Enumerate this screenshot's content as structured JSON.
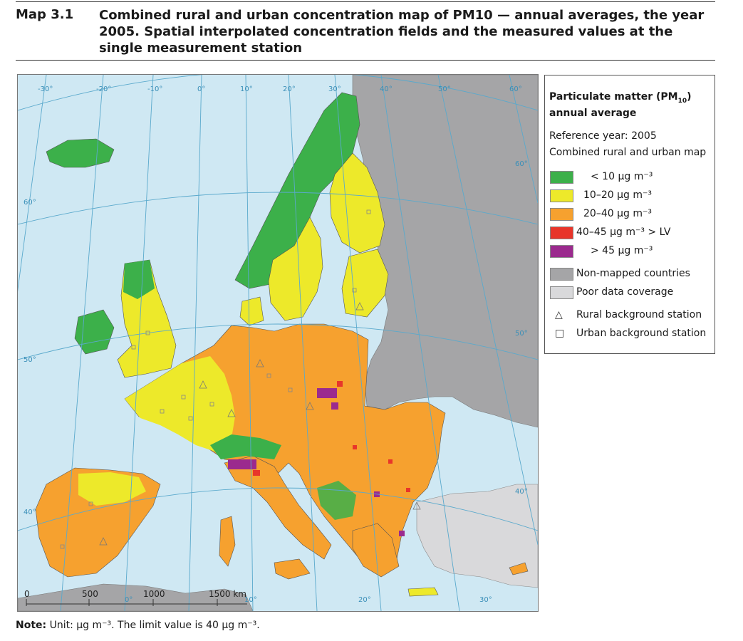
{
  "header": {
    "map_label": "Map 3.1",
    "title": "Combined rural and urban concentration map of PM10 — annual averages, the year 2005. Spatial interpolated concentration fields and the measured values at the single measurement station"
  },
  "graticule": {
    "longitude_labels": [
      "-30°",
      "-20°",
      "-10°",
      "0°",
      "10°",
      "20°",
      "30°",
      "40°",
      "50°",
      "60°"
    ],
    "latitude_labels": [
      "60°",
      "50°",
      "40°",
      "60°",
      "50°",
      "40°"
    ],
    "bottom_longitude_labels": [
      "0°",
      "10°",
      "20°",
      "30°"
    ]
  },
  "scale_bar": {
    "ticks": [
      "0",
      "500",
      "1000",
      "1500 km"
    ]
  },
  "legend": {
    "title_line1": "Particulate matter (PM",
    "title_sub": "10",
    "title_line1_end": ")",
    "title_line2": "annual average",
    "reference_year": "Reference year: 2005",
    "map_type": "Combined rural and urban map",
    "classes": [
      {
        "label": "< 10 µg m⁻³",
        "color": "#3cb04a"
      },
      {
        "label": "10–20 µg m⁻³",
        "color": "#ede92a"
      },
      {
        "label": "20–40 µg m⁻³",
        "color": "#f6a12f"
      },
      {
        "label": "40–45 µg m⁻³ > LV",
        "color": "#e8352a"
      },
      {
        "label": "> 45 µg m⁻³",
        "color": "#9b2a8e"
      }
    ],
    "non_mapped": {
      "label": "Non-mapped countries",
      "color": "#a5a5a7"
    },
    "poor_coverage": {
      "label": "Poor data coverage",
      "color": "#d9d9db"
    },
    "rural_station": {
      "symbol": "△",
      "label": "Rural background station"
    },
    "urban_station": {
      "symbol": "□",
      "label": "Urban background station"
    }
  },
  "note": {
    "label": "Note:",
    "text": "Unit: µg m⁻³. The limit value is 40 µg m⁻³."
  },
  "colors": {
    "sea": "#cfe8f3",
    "graticule": "#5aa9cc",
    "border": "#555555"
  }
}
